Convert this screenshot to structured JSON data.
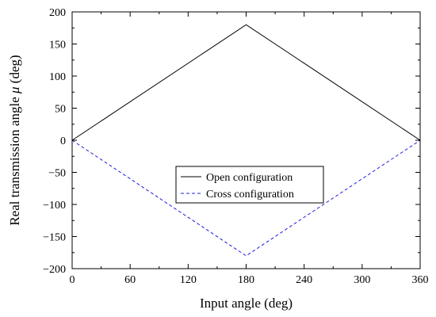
{
  "chart_data": {
    "type": "line",
    "xlabel": "Input angle (deg)",
    "ylabel": {
      "prefix": "Real transmission angle ",
      "symbol": "μ",
      "suffix": " (deg)"
    },
    "xlim": [
      0,
      360
    ],
    "ylim": [
      -200,
      200
    ],
    "xticks": [
      0,
      60,
      120,
      180,
      240,
      300,
      360
    ],
    "yticks": [
      -200,
      -150,
      -100,
      -50,
      0,
      50,
      100,
      150,
      200
    ],
    "grid": false,
    "legend_position": "center",
    "series": [
      {
        "name": "Open configuration",
        "color": "#000000",
        "dash": "solid",
        "x": [
          0,
          180,
          360
        ],
        "y": [
          0,
          180,
          0
        ]
      },
      {
        "name": "Cross configuration",
        "color": "#1f1fe0",
        "dash": "dashed",
        "x": [
          0,
          180,
          360
        ],
        "y": [
          0,
          -180,
          0
        ]
      }
    ]
  }
}
